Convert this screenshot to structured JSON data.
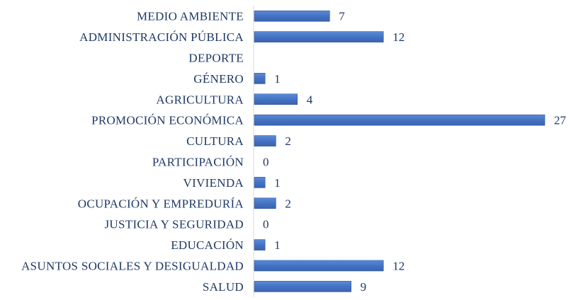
{
  "chart_data": {
    "type": "bar",
    "orientation": "horizontal",
    "title": "",
    "xlabel": "",
    "ylabel": "",
    "categories": [
      "MEDIO AMBIENTE",
      "ADMINISTRACIÓN PÚBLICA",
      "DEPORTE",
      "GÉNERO",
      "AGRICULTURA",
      "PROMOCIÓN ECONÓMICA",
      "CULTURA",
      "PARTICIPACIÓN",
      "VIVIENDA",
      "OCUPACIÓN Y EMPREDURÍA",
      "JUSTICIA Y SEGURIDAD",
      "EDUCACIÓN",
      "ASUNTOS SOCIALES Y DESIGUALDAD",
      "SALUD"
    ],
    "values": [
      7,
      12,
      null,
      1,
      4,
      27,
      2,
      0,
      1,
      2,
      0,
      1,
      12,
      9
    ],
    "value_labels": [
      "7",
      "12",
      "",
      "1",
      "4",
      "27",
      "2",
      "0",
      "1",
      "2",
      "0",
      "1",
      "12",
      "9"
    ],
    "xlim": [
      0,
      27
    ],
    "grid": false,
    "legend": "none",
    "colors": {
      "bar": "#4472c4",
      "bar_edge": "#2f5597",
      "axis": "#d9d9d9",
      "text": "#1f3864"
    }
  }
}
